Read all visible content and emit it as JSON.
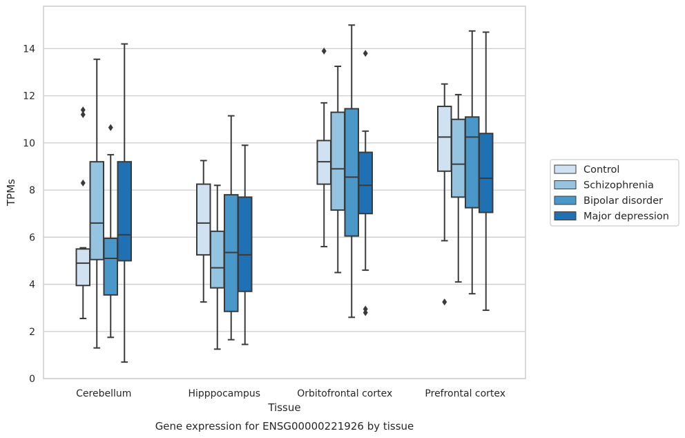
{
  "chart_data": {
    "type": "boxplot",
    "xlabel": "Tissue",
    "ylabel": "TPMs",
    "caption": "Gene expression for ENSG00000221926 by tissue",
    "ylim": [
      0,
      15.8
    ],
    "yticks": [
      0,
      2,
      4,
      6,
      8,
      10,
      12,
      14
    ],
    "grid": "horizontal",
    "legend_position": "outside-right",
    "categories": [
      "Cerebellum",
      "Hipppocampus",
      "Orbitofrontal cortex",
      "Prefrontal cortex"
    ],
    "series": [
      {
        "name": "Control",
        "color": "#d0e1f2",
        "boxes": [
          {
            "whislo": 2.55,
            "q1": 3.95,
            "med": 4.9,
            "q3": 5.5,
            "whishi": 5.55,
            "fliers": [
              8.3,
              11.2,
              11.4
            ]
          },
          {
            "whislo": 3.25,
            "q1": 5.25,
            "med": 6.6,
            "q3": 8.25,
            "whishi": 9.25,
            "fliers": []
          },
          {
            "whislo": 5.6,
            "q1": 8.25,
            "med": 9.2,
            "q3": 10.1,
            "whishi": 11.7,
            "fliers": [
              13.9
            ]
          },
          {
            "whislo": 5.85,
            "q1": 8.8,
            "med": 10.25,
            "q3": 11.55,
            "whishi": 12.5,
            "fliers": [
              3.25
            ]
          }
        ]
      },
      {
        "name": "Schizophrenia",
        "color": "#94c4df",
        "boxes": [
          {
            "whislo": 1.3,
            "q1": 5.05,
            "med": 6.6,
            "q3": 9.2,
            "whishi": 13.55,
            "fliers": []
          },
          {
            "whislo": 1.25,
            "q1": 3.85,
            "med": 4.7,
            "q3": 6.25,
            "whishi": 8.2,
            "fliers": []
          },
          {
            "whislo": 4.5,
            "q1": 7.15,
            "med": 8.9,
            "q3": 11.3,
            "whishi": 13.25,
            "fliers": []
          },
          {
            "whislo": 4.1,
            "q1": 7.7,
            "med": 9.1,
            "q3": 11.0,
            "whishi": 12.05,
            "fliers": []
          }
        ]
      },
      {
        "name": "Bipolar disorder",
        "color": "#4a98c9",
        "boxes": [
          {
            "whislo": 1.75,
            "q1": 3.55,
            "med": 5.1,
            "q3": 5.95,
            "whishi": 9.5,
            "fliers": [
              10.65
            ]
          },
          {
            "whislo": 1.65,
            "q1": 2.85,
            "med": 5.35,
            "q3": 7.8,
            "whishi": 11.15,
            "fliers": []
          },
          {
            "whislo": 2.6,
            "q1": 6.05,
            "med": 8.55,
            "q3": 11.45,
            "whishi": 15.0,
            "fliers": []
          },
          {
            "whislo": 3.6,
            "q1": 7.25,
            "med": 10.25,
            "q3": 11.1,
            "whishi": 14.75,
            "fliers": []
          }
        ]
      },
      {
        "name": "Major depression",
        "color": "#2070b4",
        "boxes": [
          {
            "whislo": 0.7,
            "q1": 5.0,
            "med": 6.1,
            "q3": 9.2,
            "whishi": 14.2,
            "fliers": []
          },
          {
            "whislo": 1.45,
            "q1": 3.7,
            "med": 5.25,
            "q3": 7.7,
            "whishi": 9.9,
            "fliers": []
          },
          {
            "whislo": 4.6,
            "q1": 7.0,
            "med": 8.2,
            "q3": 9.6,
            "whishi": 10.5,
            "fliers": [
              2.8,
              2.95,
              13.8
            ]
          },
          {
            "whislo": 2.9,
            "q1": 7.05,
            "med": 8.5,
            "q3": 10.4,
            "whishi": 14.7,
            "fliers": []
          }
        ]
      }
    ]
  }
}
